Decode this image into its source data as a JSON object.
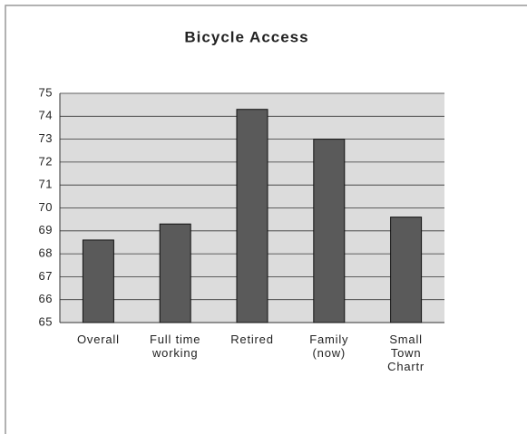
{
  "chart_data": {
    "type": "bar",
    "title": "Bicycle Access",
    "categories": [
      "Overall",
      "Full time working",
      "Retired",
      "Family (now)",
      "Small Town Chartr"
    ],
    "values": [
      68.6,
      69.3,
      74.3,
      73.0,
      69.6
    ],
    "color": "#5a5a5a",
    "ylim": [
      65,
      75
    ],
    "yticks": [
      65,
      66,
      67,
      68,
      69,
      70,
      71,
      72,
      73,
      74,
      75
    ],
    "grid": true
  }
}
